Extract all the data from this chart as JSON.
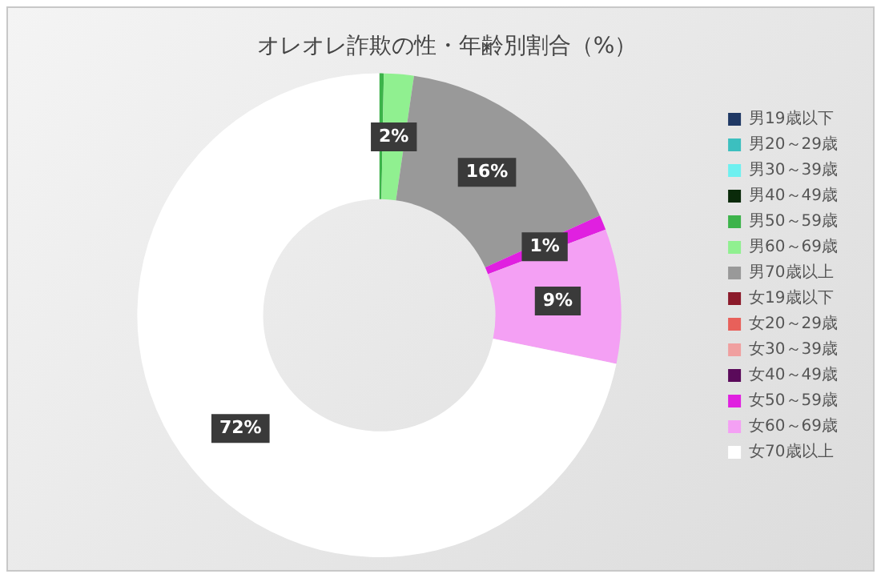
{
  "chart_data": {
    "type": "donut",
    "title": "オレオレ詐欺の性・年齢別割合（%）",
    "categories": [
      "男19歳以下",
      "男20～29歳",
      "男30～39歳",
      "男40～49歳",
      "男50～59歳",
      "男60～69歳",
      "男70歳以上",
      "女19歳以下",
      "女20～29歳",
      "女30～39歳",
      "女40～49歳",
      "女50～59歳",
      "女60～69歳",
      "女70歳以上"
    ],
    "values": [
      0,
      0,
      0,
      0,
      0.3,
      2,
      16,
      0,
      0,
      0,
      0,
      1,
      9,
      72
    ],
    "value_labels": [
      null,
      null,
      null,
      null,
      null,
      "2%",
      "16%",
      null,
      null,
      null,
      null,
      "1%",
      "9%",
      "72%"
    ],
    "colors": [
      "#1f3864",
      "#3cbfbf",
      "#6ef0f0",
      "#0a2a0a",
      "#3cb34a",
      "#90f090",
      "#999999",
      "#8b1a2a",
      "#e8605a",
      "#f0a0a0",
      "#5a0a5a",
      "#e020e0",
      "#f4a0f4",
      "#ffffff"
    ],
    "legend": "right"
  }
}
